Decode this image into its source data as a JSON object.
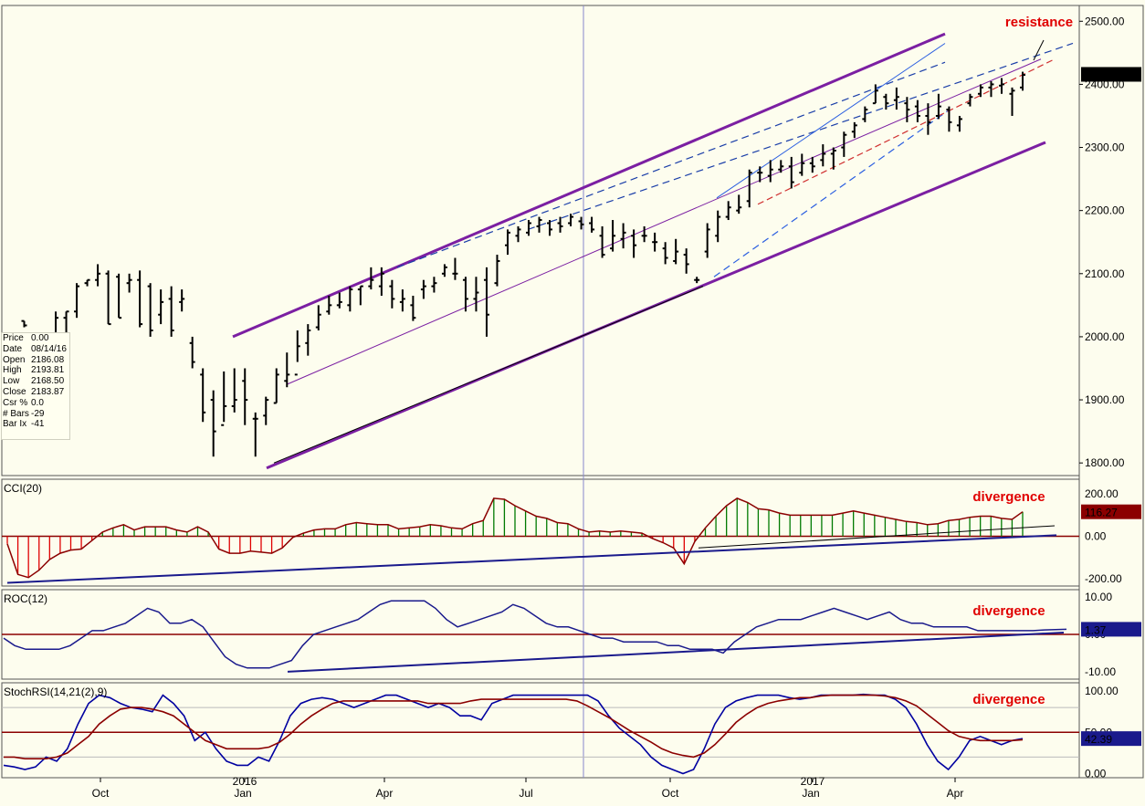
{
  "chart_data": [
    {
      "type": "bar",
      "variant": "weekly-ohlc",
      "title": "",
      "price_axis": {
        "ticks": [
          "1800.00",
          "1900.00",
          "2000.00",
          "2100.00",
          "2200.00",
          "2300.00",
          "2400.00",
          "2500.00"
        ],
        "ylim": [
          1780,
          2525
        ]
      },
      "x_axis": {
        "labels": [
          "Oct",
          "2016",
          "Jan",
          "Apr",
          "Jul",
          "Oct",
          "2017",
          "Jan",
          "Apr"
        ]
      },
      "last_price": "2415.82",
      "annotations": [
        "resistance"
      ],
      "data_window": {
        "rows": [
          {
            "label": "Price",
            "value": "0.00"
          },
          {
            "label": "Date",
            "value": "08/14/16"
          },
          {
            "label": "Open",
            "value": "2186.08"
          },
          {
            "label": "High",
            "value": "2193.81"
          },
          {
            "label": "Low",
            "value": "2168.50"
          },
          {
            "label": "Close",
            "value": "2183.87"
          },
          {
            "label": "Csr %",
            "value": "0.0"
          },
          {
            "label": "# Bars",
            "value": "-29"
          },
          {
            "label": "Bar Ix",
            "value": "-41"
          }
        ]
      },
      "ohlc": [
        [
          2000,
          2000,
          2000,
          2000
        ],
        [
          2025,
          2015,
          2025,
          2018
        ],
        [
          1960,
          1870,
          1950,
          1940
        ],
        [
          2000,
          1950,
          1960,
          1990
        ],
        [
          2040,
          1985,
          1990,
          2030
        ],
        [
          2040,
          2005,
          2030,
          2040
        ],
        [
          2085,
          2030,
          2040,
          2080
        ],
        [
          2090,
          2080,
          2085,
          2090
        ],
        [
          2115,
          2080,
          2090,
          2100
        ],
        [
          2105,
          2020,
          2100,
          2020
        ],
        [
          2100,
          2030,
          2095,
          2030
        ],
        [
          2100,
          2070,
          2085,
          2090
        ],
        [
          2105,
          2015,
          2090,
          2020
        ],
        [
          2085,
          2000,
          2080,
          2010
        ],
        [
          2075,
          2020,
          2035,
          2055
        ],
        [
          2080,
          2000,
          2060,
          2010
        ],
        [
          2075,
          2040,
          2055,
          2060
        ],
        [
          2000,
          1950,
          1990,
          1960
        ],
        [
          1950,
          1865,
          1940,
          1880
        ],
        [
          1915,
          1810,
          1900,
          1850
        ],
        [
          1945,
          1865,
          1860,
          1890
        ],
        [
          1950,
          1880,
          1890,
          1900
        ],
        [
          1950,
          1860,
          1930,
          1900
        ],
        [
          1880,
          1810,
          1870,
          1870
        ],
        [
          1905,
          1860,
          1875,
          1900
        ],
        [
          1950,
          1895,
          1895,
          1940
        ],
        [
          1975,
          1920,
          1930,
          1940
        ],
        [
          2010,
          1960,
          1940,
          1985
        ],
        [
          2020,
          1970,
          1990,
          2010
        ],
        [
          2050,
          2010,
          2015,
          2035
        ],
        [
          2065,
          2035,
          2040,
          2050
        ],
        [
          2070,
          2045,
          2050,
          2055
        ],
        [
          2080,
          2040,
          2050,
          2075
        ],
        [
          2080,
          2050,
          2075,
          2080
        ],
        [
          2110,
          2075,
          2080,
          2090
        ],
        [
          2110,
          2065,
          2080,
          2100
        ],
        [
          2090,
          2045,
          2080,
          2060
        ],
        [
          2075,
          2040,
          2055,
          2060
        ],
        [
          2065,
          2025,
          2050,
          2030
        ],
        [
          2090,
          2060,
          2075,
          2080
        ],
        [
          2095,
          2070,
          2080,
          2085
        ],
        [
          2115,
          2095,
          2100,
          2110
        ],
        [
          2125,
          2090,
          2100,
          2100
        ],
        [
          2095,
          2040,
          2090,
          2060
        ],
        [
          2095,
          2040,
          2060,
          2070
        ],
        [
          2110,
          2000,
          2090,
          2035
        ],
        [
          2130,
          2080,
          2085,
          2120
        ],
        [
          2170,
          2130,
          2145,
          2165
        ],
        [
          2175,
          2150,
          2160,
          2170
        ],
        [
          2185,
          2160,
          2165,
          2180
        ],
        [
          2190,
          2165,
          2175,
          2185
        ],
        [
          2185,
          2160,
          2180,
          2170
        ],
        [
          2190,
          2165,
          2180,
          2175
        ],
        [
          2195,
          2175,
          2180,
          2190
        ],
        [
          2190,
          2170,
          2183,
          2178
        ],
        [
          2190,
          2165,
          2180,
          2170
        ],
        [
          2175,
          2125,
          2160,
          2130
        ],
        [
          2185,
          2135,
          2140,
          2160
        ],
        [
          2180,
          2140,
          2155,
          2165
        ],
        [
          2170,
          2125,
          2160,
          2145
        ],
        [
          2175,
          2150,
          2160,
          2160
        ],
        [
          2165,
          2135,
          2150,
          2150
        ],
        [
          2150,
          2115,
          2140,
          2125
        ],
        [
          2155,
          2115,
          2120,
          2135
        ],
        [
          2140,
          2100,
          2130,
          2115
        ],
        [
          2095,
          2085,
          2090,
          2090
        ],
        [
          2180,
          2125,
          2135,
          2170
        ],
        [
          2200,
          2150,
          2160,
          2190
        ],
        [
          2215,
          2185,
          2190,
          2205
        ],
        [
          2225,
          2195,
          2200,
          2205
        ],
        [
          2265,
          2205,
          2215,
          2260
        ],
        [
          2270,
          2245,
          2260,
          2260
        ],
        [
          2280,
          2245,
          2255,
          2265
        ],
        [
          2280,
          2260,
          2265,
          2270
        ],
        [
          2285,
          2235,
          2270,
          2245
        ],
        [
          2290,
          2255,
          2260,
          2275
        ],
        [
          2285,
          2260,
          2275,
          2270
        ],
        [
          2305,
          2270,
          2280,
          2290
        ],
        [
          2300,
          2265,
          2290,
          2295
        ],
        [
          2325,
          2285,
          2300,
          2320
        ],
        [
          2340,
          2315,
          2325,
          2335
        ],
        [
          2365,
          2340,
          2345,
          2360
        ],
        [
          2400,
          2370,
          2370,
          2390
        ],
        [
          2385,
          2360,
          2380,
          2370
        ],
        [
          2395,
          2360,
          2375,
          2380
        ],
        [
          2380,
          2340,
          2370,
          2360
        ],
        [
          2375,
          2340,
          2365,
          2350
        ],
        [
          2370,
          2320,
          2350,
          2340
        ],
        [
          2385,
          2345,
          2350,
          2365
        ],
        [
          2365,
          2325,
          2360,
          2340
        ],
        [
          2350,
          2325,
          2335,
          2345
        ],
        [
          2385,
          2365,
          2370,
          2380
        ],
        [
          2400,
          2380,
          2385,
          2395
        ],
        [
          2405,
          2380,
          2395,
          2400
        ],
        [
          2410,
          2385,
          2398,
          2400
        ],
        [
          2395,
          2350,
          2385,
          2390
        ],
        [
          2420,
          2390,
          2395,
          2415
        ]
      ],
      "trendlines": "rising channel (purple), median regression lines (red/blue dashed)"
    },
    {
      "type": "bar",
      "variant": "histogram",
      "title": "CCI(20)",
      "axis_ticks": [
        "200.00",
        "0.00",
        "-200.00"
      ],
      "ylim": [
        -235,
        270
      ],
      "last_value": "116.27",
      "annotation": "divergence",
      "values": [
        -35,
        -180,
        -195,
        -160,
        -110,
        -80,
        -65,
        -60,
        -20,
        20,
        40,
        55,
        30,
        45,
        45,
        45,
        30,
        20,
        45,
        20,
        -60,
        -80,
        -80,
        -70,
        -75,
        -80,
        -55,
        -5,
        15,
        30,
        35,
        35,
        55,
        65,
        60,
        55,
        55,
        35,
        40,
        45,
        55,
        50,
        40,
        35,
        60,
        75,
        180,
        175,
        145,
        120,
        95,
        85,
        65,
        60,
        35,
        20,
        25,
        20,
        25,
        20,
        15,
        -10,
        -30,
        -55,
        -130,
        -25,
        40,
        95,
        145,
        180,
        160,
        130,
        125,
        110,
        100,
        100,
        100,
        100,
        100,
        110,
        120,
        110,
        100,
        90,
        80,
        70,
        65,
        55,
        60,
        75,
        80,
        90,
        95,
        95,
        85,
        80,
        116
      ]
    },
    {
      "type": "line",
      "title": "ROC(12)",
      "axis_ticks": [
        "10.00",
        "0.00",
        "-10.00"
      ],
      "ylim": [
        -12,
        12
      ],
      "last_value": "1.37",
      "annotation": "divergence",
      "values": [
        -1,
        -3,
        -4,
        -4,
        -4,
        -4,
        -3,
        -1,
        1,
        1,
        2,
        3,
        5,
        7,
        6,
        3,
        3,
        4,
        2,
        -2,
        -6,
        -8,
        -9,
        -9,
        -9,
        -8,
        -7,
        -3,
        0,
        1,
        2,
        3,
        4,
        6,
        8,
        9,
        9,
        9,
        9,
        7,
        4,
        2,
        3,
        4,
        5,
        6,
        8,
        7,
        5,
        3,
        2,
        2,
        1,
        0,
        -1,
        -1,
        -2,
        -2,
        -2,
        -2,
        -3,
        -3,
        -4,
        -4,
        -4,
        -5,
        -2,
        0,
        2,
        3,
        4,
        4,
        4,
        5,
        6,
        7,
        6,
        5,
        4,
        5,
        6,
        4,
        3,
        3,
        2,
        2,
        2,
        2,
        1,
        1,
        1,
        1,
        1,
        1,
        1.2,
        1.3,
        1.37
      ]
    },
    {
      "type": "line",
      "title": "StochRSI(14,21(2),9)",
      "axis_ticks": [
        "100.00",
        "50.00",
        "0.00"
      ],
      "ylim": [
        -5,
        110
      ],
      "last_value": "42.39",
      "annotation": "divergence",
      "series": [
        {
          "color": "#0000a0",
          "values": [
            10,
            8,
            5,
            8,
            20,
            15,
            30,
            60,
            85,
            95,
            92,
            85,
            80,
            78,
            75,
            95,
            85,
            70,
            40,
            50,
            30,
            15,
            10,
            10,
            20,
            15,
            40,
            70,
            85,
            90,
            92,
            90,
            85,
            80,
            85,
            90,
            95,
            95,
            90,
            85,
            80,
            85,
            80,
            70,
            70,
            65,
            85,
            90,
            95,
            95,
            95,
            95,
            95,
            95,
            95,
            95,
            88,
            70,
            55,
            45,
            35,
            20,
            10,
            5,
            0,
            5,
            30,
            60,
            80,
            88,
            92,
            95,
            95,
            95,
            92,
            90,
            92,
            95,
            95,
            95,
            95,
            96,
            95,
            95,
            90,
            80,
            60,
            35,
            15,
            5,
            20,
            40,
            45,
            40,
            35,
            40,
            42.39
          ]
        },
        {
          "color": "#8b0000",
          "values": [
            20,
            20,
            18,
            18,
            18,
            20,
            25,
            35,
            45,
            60,
            70,
            78,
            80,
            80,
            78,
            75,
            70,
            60,
            50,
            40,
            35,
            30,
            30,
            30,
            30,
            32,
            38,
            48,
            60,
            70,
            78,
            85,
            88,
            88,
            88,
            88,
            88,
            88,
            88,
            88,
            85,
            85,
            85,
            85,
            88,
            90,
            90,
            90,
            90,
            90,
            90,
            90,
            90,
            90,
            88,
            82,
            75,
            68,
            60,
            52,
            45,
            38,
            30,
            25,
            22,
            20,
            25,
            35,
            48,
            62,
            72,
            80,
            85,
            88,
            90,
            92,
            92,
            94,
            95,
            95,
            95,
            95,
            95,
            94,
            92,
            88,
            82,
            72,
            62,
            52,
            45,
            42,
            40,
            40,
            40,
            40,
            41
          ]
        }
      ],
      "levels": [
        50
      ]
    }
  ]
}
